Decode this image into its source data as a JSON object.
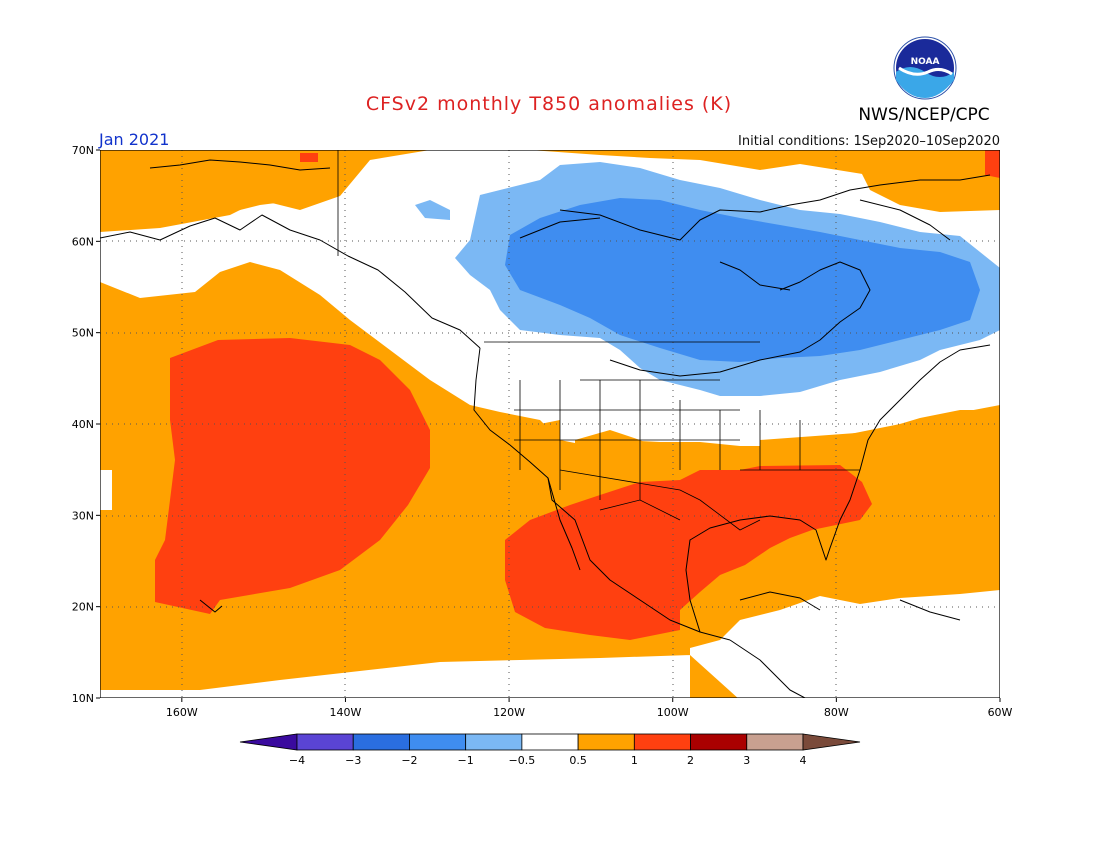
{
  "title": "CFSv2 monthly T850 anomalies (K)",
  "agency": "NWS/NCEP/CPC",
  "logo_text": "NOAA",
  "month_label": "Jan 2021",
  "initial_conditions": "Initial conditions: 1Sep2020–10Sep2020",
  "map": {
    "lon_range": [
      -170,
      -60
    ],
    "lat_range": [
      10,
      70
    ],
    "lat_ticks": [
      {
        "value": 70,
        "label": "70N"
      },
      {
        "value": 60,
        "label": "60N"
      },
      {
        "value": 50,
        "label": "50N"
      },
      {
        "value": 40,
        "label": "40N"
      },
      {
        "value": 30,
        "label": "30N"
      },
      {
        "value": 20,
        "label": "20N"
      },
      {
        "value": 10,
        "label": "10N"
      }
    ],
    "lon_ticks": [
      {
        "value": -160,
        "label": "160W"
      },
      {
        "value": -140,
        "label": "140W"
      },
      {
        "value": -120,
        "label": "120W"
      },
      {
        "value": -100,
        "label": "100W"
      },
      {
        "value": -80,
        "label": "80W"
      },
      {
        "value": -60,
        "label": "60W"
      }
    ],
    "grid": true
  },
  "colorbar": {
    "colors": [
      "#3a0a9e",
      "#5a44d4",
      "#2a6ee0",
      "#3f8df0",
      "#7bb8f4",
      "#ffffff",
      "#ffa200",
      "#ff4010",
      "#aa0000",
      "#c8a090",
      "#7a4a3a"
    ],
    "labels": [
      "−4",
      "−3",
      "−2",
      "−1",
      "−0.5",
      "0.5",
      "1",
      "2",
      "3",
      "4"
    ]
  },
  "anomaly_regions": [
    {
      "level": "0.5 to 1",
      "color": "#ffa200",
      "description": "Pacific, western North America, southeastern US, Arctic"
    },
    {
      "level": "1 to 2",
      "color": "#ff4010",
      "description": "North Pacific (~150W, 20-45N), southern US, Mexico, far northeast"
    },
    {
      "level": "-1 to -0.5",
      "color": "#7bb8f4",
      "description": "Canada"
    },
    {
      "level": "-2 to -1",
      "color": "#3f8df0",
      "description": "central-eastern Canada, Hudson Bay"
    },
    {
      "level": "-0.5 to 0.5",
      "color": "#ffffff",
      "description": "neutral band across northern US and coastal Alaska/BC"
    }
  ]
}
